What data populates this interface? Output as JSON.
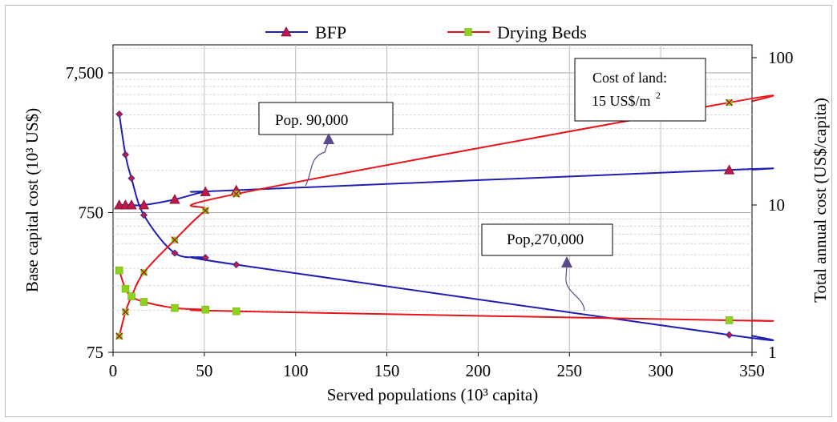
{
  "chart_data": {
    "type": "line",
    "xlabel": "Served populations  (10³ capita)",
    "ylabel_left": "Base capital cost  (10³ US$)",
    "ylabel_right": "Total annual cost (US$/capita)",
    "xlim": [
      0,
      350
    ],
    "x_ticks": [
      "0",
      "50",
      "100",
      "150",
      "200",
      "250",
      "300",
      "350"
    ],
    "ylim_left": [
      75,
      7500
    ],
    "yscale_left": "log",
    "y_left_ticks": [
      "75",
      "750",
      "7,500"
    ],
    "ylim_right": [
      1,
      100
    ],
    "yscale_right": "log",
    "y_right_ticks": [
      "1",
      "10",
      "100"
    ],
    "grid": true,
    "legend_placement": "top-center",
    "legend": [
      {
        "name": "BFP",
        "color": "#1f1fb4",
        "marker": "triangle",
        "marker_color": "#c0184a"
      },
      {
        "name": "Drying Beds",
        "color": "#e8141b",
        "marker": "square",
        "marker_color": "#8cd21e"
      }
    ],
    "series": [
      {
        "name": "BFP capital cost",
        "axis": "left",
        "color": "#1f1fb4",
        "marker": "diamond",
        "x": [
          3.4,
          6.8,
          10.1,
          16.9,
          33.8,
          50.6,
          67.5,
          337.5
        ],
        "y": [
          3800,
          1950,
          1320,
          720,
          385,
          357,
          318,
          100
        ]
      },
      {
        "name": "BFP annual cost",
        "axis": "right",
        "color": "#1f1fb4",
        "marker": "triangle",
        "x": [
          3.4,
          6.8,
          10.1,
          16.9,
          33.8,
          50.6,
          67.5,
          337.5
        ],
        "y": [
          10,
          10,
          10,
          10,
          10.9,
          12.3,
          12.6,
          17.3
        ]
      },
      {
        "name": "Drying Beds capital cost",
        "axis": "left",
        "color": "#e8141b",
        "marker": "x",
        "x": [
          3.4,
          6.8,
          10.1,
          16.9,
          33.8,
          50.6,
          67.5,
          337.5
        ],
        "y": [
          98,
          146,
          188,
          280,
          478,
          775,
          1020,
          4600
        ]
      },
      {
        "name": "Drying Beds annual cost",
        "axis": "right",
        "color": "#e8141b",
        "marker": "square",
        "x": [
          3.4,
          6.8,
          10.1,
          16.9,
          33.8,
          50.6,
          67.5,
          337.5
        ],
        "y": [
          3.6,
          2.7,
          2.4,
          2.2,
          2.0,
          1.95,
          1.9,
          1.65
        ]
      }
    ],
    "annotations": [
      {
        "text": "Pop. 90,000",
        "pointer_x": 120,
        "pointer_y_right": 8.5
      },
      {
        "text": "Pop,270,000",
        "pointer_x": 270,
        "pointer_y_right": 1.7
      },
      {
        "text_line1": "Cost of land:",
        "text_line2": "15 US$/m",
        "superscript": "2"
      }
    ]
  }
}
